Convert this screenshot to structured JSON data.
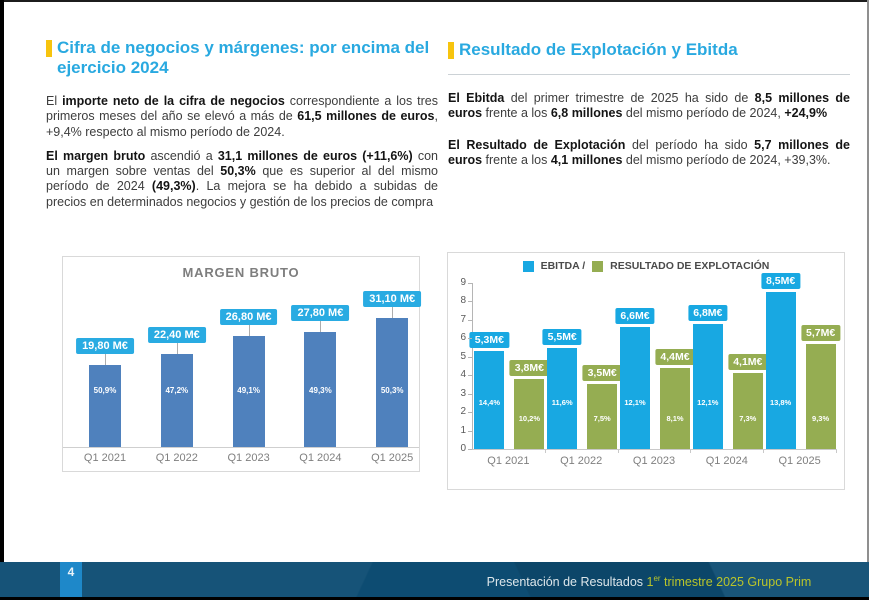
{
  "slide": {
    "left": {
      "heading": "Cifra de negocios y márgenes: por encima del ejercicio 2024",
      "p1": [
        {
          "t": "El ",
          "b": false
        },
        {
          "t": "importe neto de la cifra de negocios",
          "b": true
        },
        {
          "t": " correspondiente a los tres primeros meses del año se elevó a más de ",
          "b": false
        },
        {
          "t": "61,5 millones de euros",
          "b": true
        },
        {
          "t": ", +9,4% respecto al mismo período de 2024.",
          "b": false
        }
      ],
      "p2": [
        {
          "t": "El margen bruto",
          "b": true
        },
        {
          "t": " ascendió a ",
          "b": false
        },
        {
          "t": "31,1 millones de euros (+11,6%)",
          "b": true
        },
        {
          "t": " con un margen sobre ventas del ",
          "b": false
        },
        {
          "t": "50,3%",
          "b": true
        },
        {
          "t": " que es superior al del mismo período de 2024 ",
          "b": false
        },
        {
          "t": "(49,3%)",
          "b": true
        },
        {
          "t": ". La mejora se ha debido a subidas de precios en determinados negocios y gestión de los precios de compra",
          "b": false
        }
      ]
    },
    "right": {
      "heading": "Resultado de Explotación y Ebitda",
      "p1": [
        {
          "t": "El Ebitda",
          "b": true
        },
        {
          "t": " del primer trimestre de 2025 ha sido de ",
          "b": false
        },
        {
          "t": "8,5 millones de euros",
          "b": true
        },
        {
          "t": " frente a los ",
          "b": false
        },
        {
          "t": "6,8 millones",
          "b": true
        },
        {
          "t": " del mismo período de 2024, ",
          "b": false
        },
        {
          "t": "+24,9%",
          "b": true
        }
      ],
      "p2": [
        {
          "t": "El Resultado de Explotación",
          "b": true
        },
        {
          "t": " del período ha sido ",
          "b": false
        },
        {
          "t": "5,7 millones de euros",
          "b": true
        },
        {
          "t": " frente a los ",
          "b": false
        },
        {
          "t": "4,1 millones",
          "b": true
        },
        {
          "t": " del mismo período de 2024, +39,3%.",
          "b": false
        }
      ]
    },
    "footer": {
      "page_number": "4",
      "caption_plain": "Presentación de Resultados ",
      "caption_highlight_prefix": "1",
      "caption_highlight_sup": "er",
      "caption_highlight_rest": " trimestre 2025 Grupo Prim"
    },
    "colors": {
      "heading_blue": "#29a9e0",
      "accent_yellow": "#f7c40e",
      "body_text": "#3d3d3d",
      "bar_steel_blue": "#4f81bd",
      "callout_cyan": "#29abe2",
      "ebitda_blue": "#18a8e2",
      "explotacion_green": "#95ad52",
      "footer_navy": "#0d4c72",
      "pagebox_blue": "#1e88c9",
      "footer_highlight": "#b9c42a",
      "chart_border": "#d9d9d9"
    }
  },
  "chart_data": [
    {
      "type": "bar",
      "title": "MARGEN BRUTO",
      "categories": [
        "Q1 2021",
        "Q1 2022",
        "Q1 2023",
        "Q1 2024",
        "Q1 2025"
      ],
      "values": [
        19.8,
        22.4,
        26.8,
        27.8,
        31.1
      ],
      "bar_labels": [
        "19,80 M€",
        "22,40 M€",
        "26,80 M€",
        "27,80 M€",
        "31,10 M€"
      ],
      "inner_labels": [
        "50,9%",
        "47,2%",
        "49,1%",
        "49,3%",
        "50,3%"
      ],
      "unit": "M€",
      "ylim": [
        0,
        35
      ],
      "grid": false,
      "legend": null,
      "bar_color": "#4f81bd",
      "label_bg": "#29abe2"
    },
    {
      "type": "grouped-bar",
      "title": "",
      "categories": [
        "Q1 2021",
        "Q1 2022",
        "Q1 2023",
        "Q1 2024",
        "Q1 2025"
      ],
      "series": [
        {
          "name": "EBITDA",
          "color": "#18a8e2",
          "values": [
            5.3,
            5.5,
            6.6,
            6.8,
            8.5
          ],
          "bar_labels": [
            "5,3M€",
            "5,5M€",
            "6,6M€",
            "6,8M€",
            "8,5M€"
          ],
          "inner_labels": [
            "14,4%",
            "11,6%",
            "12,1%",
            "12,1%",
            "13,8%"
          ]
        },
        {
          "name": "RESULTADO DE EXPLOTACIÓN",
          "color": "#95ad52",
          "values": [
            3.8,
            3.5,
            4.4,
            4.1,
            5.7
          ],
          "bar_labels": [
            "3,8M€",
            "3,5M€",
            "4,4M€",
            "4,1M€",
            "5,7M€"
          ],
          "inner_labels": [
            "10,2%",
            "7,5%",
            "8,1%",
            "7,3%",
            "9,3%"
          ]
        }
      ],
      "unit": "M€",
      "ylim": [
        0,
        9
      ],
      "yticks": [
        0,
        1,
        2,
        3,
        4,
        5,
        6,
        7,
        8,
        9
      ],
      "legend_separator": "/",
      "legend_position": "top",
      "grid": false
    }
  ]
}
